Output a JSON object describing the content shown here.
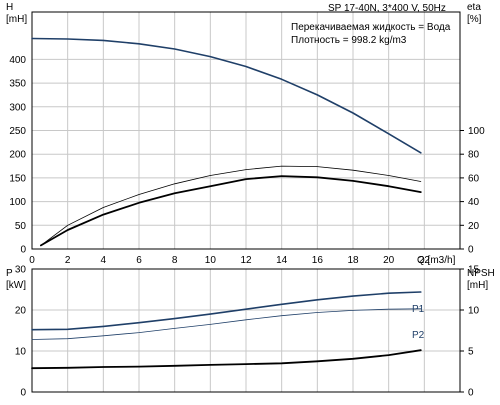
{
  "header": {
    "pump_label": "SP 17-40N, 3*400 V, 50Hz",
    "liquid_label": "Перекачиваемая жидкость = Вода",
    "density_label": "Плотность = 998.2 kg/m3"
  },
  "chart_data": [
    {
      "type": "line",
      "x_label": "Q [m3/h]",
      "xlim": [
        0,
        24
      ],
      "x_ticks": [
        0,
        2,
        4,
        6,
        8,
        10,
        12,
        14,
        16,
        18,
        20,
        22
      ],
      "left_axis": {
        "label_line1": "H",
        "label_line2": "[mH]",
        "ylim": [
          0,
          500
        ],
        "ticks": [
          0,
          50,
          100,
          150,
          200,
          250,
          300,
          350,
          400
        ]
      },
      "right_axis": {
        "label_line1": "eta",
        "label_line2": "[%]",
        "ylim": [
          0,
          200
        ],
        "ticks": [
          0,
          20,
          40,
          60,
          80,
          100
        ]
      },
      "grid": true,
      "series": [
        {
          "axis": "left",
          "color": "#1f3f68",
          "width": 1.6,
          "x": [
            0,
            2,
            4,
            6,
            8,
            10,
            12,
            14,
            16,
            18,
            20,
            21.8
          ],
          "y": [
            444,
            443,
            440,
            433,
            422,
            406,
            385,
            358,
            325,
            287,
            243,
            203
          ]
        },
        {
          "axis": "right",
          "color": "#000000",
          "width": 0.8,
          "x": [
            0.5,
            2,
            4,
            6,
            8,
            10,
            12,
            14,
            16,
            18,
            20,
            21.8
          ],
          "y": [
            3,
            20,
            35,
            46,
            55,
            62,
            67,
            70,
            69.5,
            66.5,
            62,
            57
          ]
        },
        {
          "axis": "right",
          "color": "#000000",
          "width": 1.8,
          "x": [
            0.5,
            2,
            4,
            6,
            8,
            10,
            12,
            14,
            16,
            18,
            20,
            21.8
          ],
          "y": [
            3,
            16,
            29,
            39,
            47,
            53,
            59,
            61.5,
            60.5,
            57.5,
            53,
            48
          ]
        }
      ]
    },
    {
      "type": "line",
      "xlim": [
        0,
        24
      ],
      "x_ticks": [
        0,
        2,
        4,
        6,
        8,
        10,
        12,
        14,
        16,
        18,
        20,
        22
      ],
      "left_axis": {
        "label_line1": "P",
        "label_line2": "[kW]",
        "ylim": [
          0,
          30
        ],
        "ticks": [
          0,
          10,
          20,
          30
        ]
      },
      "right_axis": {
        "label_line1": "NPSH",
        "label_line2": "[mH]",
        "ylim": [
          0,
          15
        ],
        "ticks": [
          0,
          5,
          10,
          15
        ]
      },
      "grid": true,
      "series": [
        {
          "name": "P1",
          "axis": "left",
          "color": "#1f3f68",
          "width": 1.6,
          "x": [
            0,
            2,
            4,
            6,
            8,
            10,
            12,
            14,
            16,
            18,
            20,
            21.8
          ],
          "y": [
            15.2,
            15.3,
            16,
            16.9,
            17.9,
            19,
            20.2,
            21.4,
            22.5,
            23.4,
            24.1,
            24.4
          ]
        },
        {
          "name": "P2",
          "axis": "left",
          "color": "#1f3f68",
          "width": 0.8,
          "x": [
            0,
            2,
            4,
            6,
            8,
            10,
            12,
            14,
            16,
            18,
            20,
            21.8
          ],
          "y": [
            12.8,
            13,
            13.7,
            14.5,
            15.5,
            16.5,
            17.6,
            18.6,
            19.4,
            19.9,
            20.2,
            20.3
          ]
        },
        {
          "axis": "right",
          "color": "#000000",
          "width": 1.8,
          "x": [
            0,
            2,
            4,
            6,
            8,
            10,
            12,
            14,
            16,
            18,
            20,
            21.8
          ],
          "y": [
            2.9,
            2.95,
            3.05,
            3.1,
            3.2,
            3.3,
            3.4,
            3.5,
            3.75,
            4.05,
            4.5,
            5.1
          ]
        }
      ]
    }
  ]
}
